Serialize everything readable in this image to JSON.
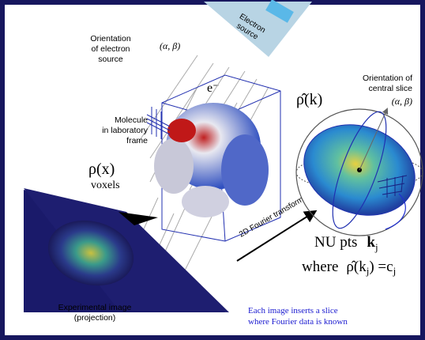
{
  "electron_source": {
    "line1": "Electron",
    "line2": "source"
  },
  "orientation_source": {
    "line1": "Orientation",
    "line2": "of electron",
    "line3": "source",
    "angles": "(α, β)"
  },
  "electron": "e⁻",
  "molecule": {
    "line1": "Molecule",
    "line2": "in laboratory",
    "line3": "frame"
  },
  "density": {
    "symbol": "ρ(x)",
    "unit": "voxels"
  },
  "fourier_density": "ρ̂(k)",
  "orientation_slice": {
    "line1": "Orientation of",
    "line2": "central slice",
    "angles": "(α, β)"
  },
  "transform": "2D Fourier transform",
  "nu_points": {
    "prefix": "NU pts",
    "k": "k",
    "sub": "j",
    "where": "where",
    "rho": "ρ̂(k",
    "rho_sub": "j",
    "equals": ") =c",
    "c_sub": "j"
  },
  "experimental_image": {
    "line1": "Experimental image",
    "line2": "(projection)"
  },
  "note": {
    "line1": "Each image inserts a slice",
    "line2": "where Fourier data is known"
  }
}
